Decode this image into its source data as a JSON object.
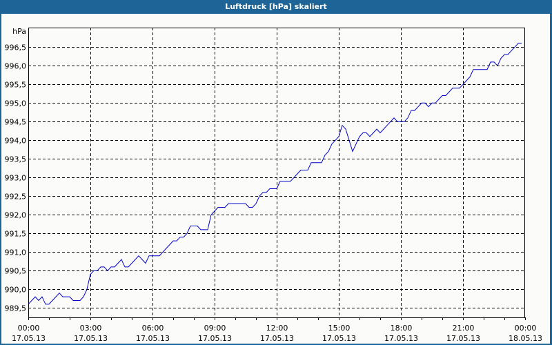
{
  "window": {
    "title": "Luftdruck [hPa] skaliert"
  },
  "colors": {
    "frame": "#1e6496",
    "background": "#fbfcfa",
    "series": "#0000c8",
    "grid": "#000000"
  },
  "chart_data": {
    "type": "line",
    "title": "Luftdruck [hPa] skaliert",
    "xlabel": "",
    "ylabel": "hPa",
    "ylim": [
      989.25,
      996.75
    ],
    "y_ticks": [
      "989,5",
      "990,0",
      "990,5",
      "991,0",
      "991,5",
      "992,0",
      "992,5",
      "993,0",
      "993,5",
      "994,0",
      "994,5",
      "995,0",
      "995,5",
      "996,0",
      "996,5"
    ],
    "y_tick_values": [
      989.5,
      990.0,
      990.5,
      991.0,
      991.5,
      992.0,
      992.5,
      993.0,
      993.5,
      994.0,
      994.5,
      995.0,
      995.5,
      996.0,
      996.5
    ],
    "x_ticks": [
      {
        "time": "00:00",
        "date": "17.05.13"
      },
      {
        "time": "03:00",
        "date": "17.05.13"
      },
      {
        "time": "06:00",
        "date": "17.05.13"
      },
      {
        "time": "09:00",
        "date": "17.05.13"
      },
      {
        "time": "12:00",
        "date": "17.05.13"
      },
      {
        "time": "15:00",
        "date": "17.05.13"
      },
      {
        "time": "18:00",
        "date": "17.05.13"
      },
      {
        "time": "21:00",
        "date": "17.05.13"
      },
      {
        "time": "00:00",
        "date": "18.05.13"
      }
    ],
    "x_range_hours": [
      0,
      24
    ],
    "sample_interval_minutes": 10,
    "grid": true,
    "legend": "none",
    "series": [
      {
        "name": "Luftdruck",
        "unit": "hPa",
        "values": [
          989.6,
          989.7,
          989.8,
          989.7,
          989.8,
          989.6,
          989.6,
          989.7,
          989.8,
          989.9,
          989.8,
          989.8,
          989.8,
          989.7,
          989.7,
          989.7,
          989.8,
          990.0,
          990.4,
          990.5,
          990.5,
          990.6,
          990.6,
          990.5,
          990.6,
          990.6,
          990.7,
          990.8,
          990.6,
          990.6,
          990.7,
          990.8,
          990.9,
          990.8,
          990.7,
          990.9,
          990.9,
          990.9,
          990.9,
          991.0,
          991.1,
          991.2,
          991.3,
          991.3,
          991.4,
          991.4,
          991.5,
          991.7,
          991.7,
          991.7,
          991.6,
          991.6,
          991.6,
          992.0,
          992.1,
          992.2,
          992.2,
          992.2,
          992.3,
          992.3,
          992.3,
          992.3,
          992.3,
          992.3,
          992.2,
          992.2,
          992.3,
          992.5,
          992.6,
          992.6,
          992.7,
          992.7,
          992.7,
          992.9,
          992.9,
          992.9,
          992.9,
          993.0,
          993.1,
          993.2,
          993.2,
          993.2,
          993.4,
          993.4,
          993.4,
          993.4,
          993.6,
          993.7,
          993.9,
          994.0,
          994.1,
          994.4,
          994.3,
          994.0,
          993.7,
          993.9,
          994.1,
          994.2,
          994.2,
          994.1,
          994.2,
          994.3,
          994.2,
          994.3,
          994.4,
          994.5,
          994.6,
          994.5,
          994.5,
          994.5,
          994.6,
          994.8,
          994.8,
          994.9,
          995.0,
          995.0,
          994.9,
          995.0,
          995.0,
          995.1,
          995.2,
          995.2,
          995.3,
          995.4,
          995.4,
          995.4,
          995.5,
          995.6,
          995.7,
          995.9,
          995.9,
          995.9,
          995.9,
          995.9,
          996.1,
          996.1,
          996.0,
          996.2,
          996.3,
          996.3,
          996.4,
          996.5,
          996.6,
          996.6
        ]
      }
    ]
  }
}
